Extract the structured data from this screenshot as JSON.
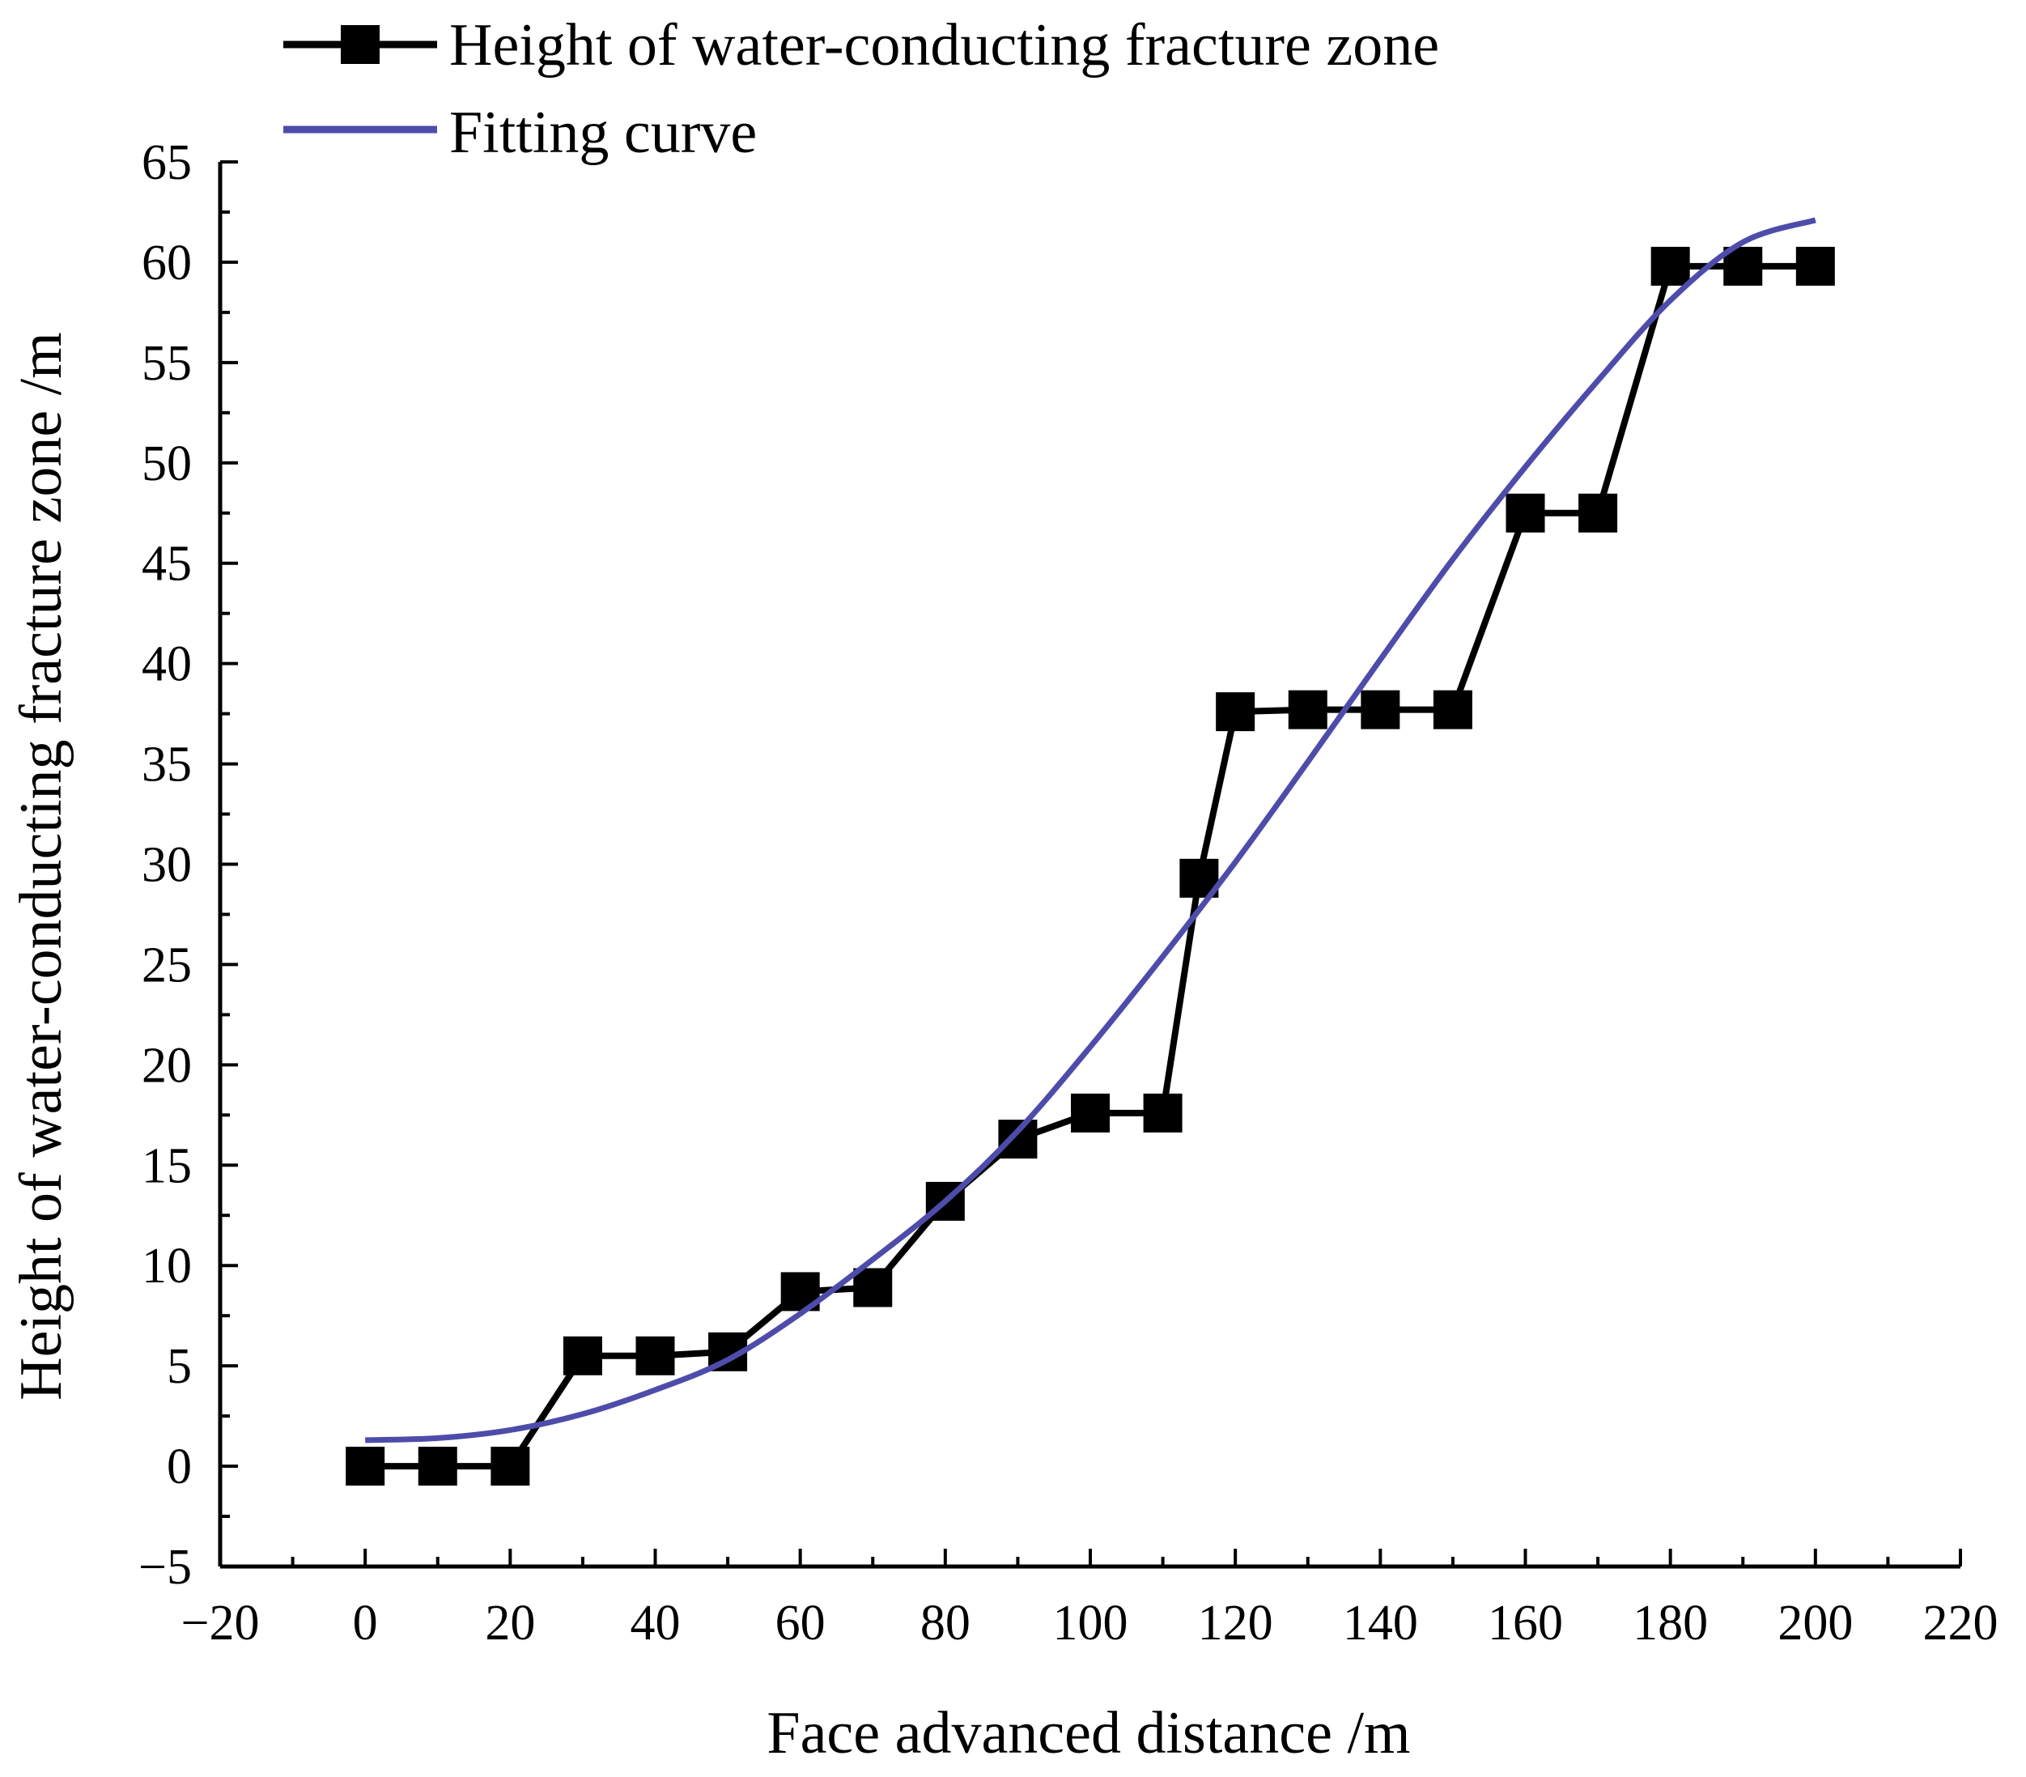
{
  "chart_data": {
    "type": "line",
    "title": "",
    "xlabel": "Face advanced distance /m",
    "ylabel": "Height of water-conducting fracture zone /m",
    "xlim": [
      -20,
      220
    ],
    "ylim": [
      -5,
      65
    ],
    "xticks": [
      -20,
      0,
      20,
      40,
      60,
      80,
      100,
      120,
      140,
      160,
      180,
      200,
      220
    ],
    "yticks": [
      -5,
      0,
      5,
      10,
      15,
      20,
      25,
      30,
      35,
      40,
      45,
      50,
      55,
      60,
      65
    ],
    "xtick_labels": [
      "−20",
      "0",
      "20",
      "40",
      "60",
      "80",
      "100",
      "120",
      "140",
      "160",
      "180",
      "200",
      "220"
    ],
    "ytick_labels": [
      "−5",
      "0",
      "5",
      "10",
      "15",
      "20",
      "25",
      "30",
      "35",
      "40",
      "45",
      "50",
      "55",
      "60",
      "65"
    ],
    "legend_position": "top-left",
    "grid": false,
    "series": [
      {
        "name": "Height of water-conducting fracture zone",
        "style": "line-with-square-markers",
        "color": "#000000",
        "x": [
          0,
          10,
          20,
          30,
          40,
          50,
          60,
          70,
          80,
          90,
          100,
          110,
          115,
          120,
          130,
          140,
          150,
          160,
          170,
          180,
          190,
          200
        ],
        "y": [
          0,
          0,
          0,
          5.5,
          5.5,
          5.7,
          8.7,
          8.9,
          13.2,
          16.3,
          17.6,
          17.6,
          29.3,
          37.6,
          37.7,
          37.7,
          37.7,
          47.5,
          47.5,
          59.8,
          59.8,
          59.8
        ]
      },
      {
        "name": "Fitting curve",
        "style": "smooth-line",
        "color": "#4e4caa",
        "x": [
          0,
          10,
          20,
          30,
          40,
          50,
          60,
          70,
          80,
          90,
          100,
          110,
          120,
          130,
          140,
          150,
          160,
          170,
          180,
          190,
          200
        ],
        "y": [
          1.3,
          1.4,
          1.8,
          2.6,
          3.8,
          5.3,
          7.6,
          10.3,
          13.2,
          16.7,
          20.9,
          25.4,
          30.1,
          35.1,
          40.2,
          45.2,
          49.8,
          54.1,
          58.1,
          61.0,
          62.1
        ]
      }
    ]
  }
}
